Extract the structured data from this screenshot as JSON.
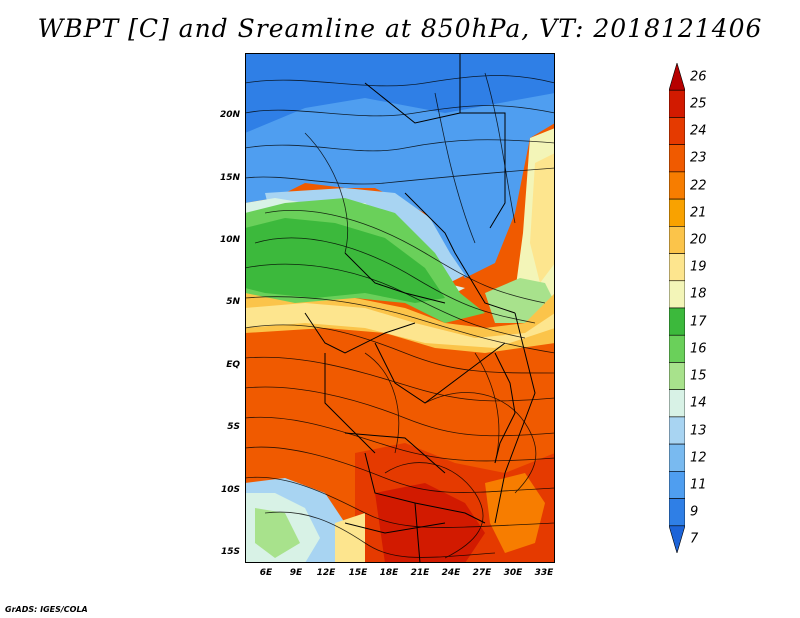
{
  "title": "WBPT [C] and Sreamline at 850hPa, VT: 2018121406",
  "footer": "GrADS: IGES/COLA",
  "map": {
    "lat_labels": [
      "20N",
      "15N",
      "10N",
      "5N",
      "EQ",
      "5S",
      "10S",
      "15S"
    ],
    "lon_labels": [
      "6E",
      "9E",
      "12E",
      "15E",
      "18E",
      "21E",
      "24E",
      "27E",
      "30E",
      "33E"
    ],
    "lon_range": [
      3,
      34.5
    ],
    "lat_range": [
      -16.5,
      25
    ]
  },
  "colorbar": {
    "labels": [
      "26",
      "25",
      "24",
      "23",
      "22",
      "21",
      "20",
      "19",
      "18",
      "17",
      "16",
      "15",
      "14",
      "13",
      "12",
      "11",
      "9",
      "7"
    ],
    "colors": [
      "#b60000",
      "#d21a00",
      "#e53a00",
      "#f05a00",
      "#f77d00",
      "#f9a200",
      "#fbc44a",
      "#fde58e",
      "#f3f5b8",
      "#3cb93c",
      "#6ad05a",
      "#a8e28c",
      "#d8f2e6",
      "#a8d4f2",
      "#79baf0",
      "#4f9ef0",
      "#2f7fe6",
      "#1d64d8"
    ]
  }
}
